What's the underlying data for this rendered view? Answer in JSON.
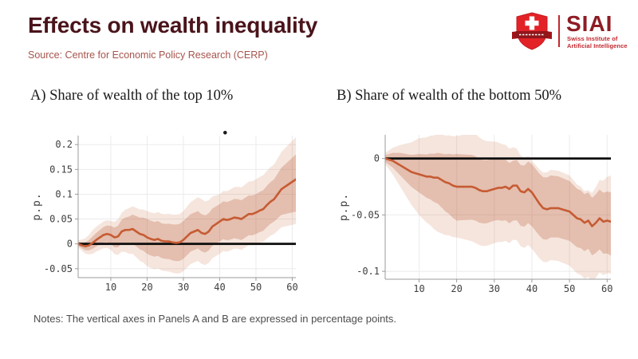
{
  "header": {
    "title": "Effects on wealth inequality",
    "source": "Source: Centre for Economic Policy Research (CERP)",
    "logo": {
      "acronym": "SIAI",
      "line1": "Swiss Institute of",
      "line2": "Artificial Intelligence",
      "shield_red": "#e32227",
      "banner_dark": "#8f161b",
      "text_dark_red": "#8e1c24",
      "text_red": "#c1272d"
    }
  },
  "notes": "Notes: The vertical axes in Panels A and B are expressed in percentage points.",
  "colors": {
    "title": "#4a141b",
    "source": "#a6544d",
    "line": "#c65b33",
    "outer_band": "rgba(205,125,85,0.20)",
    "inner_band": "rgba(190,100,65,0.30)",
    "zero_line": "#0d0d0d",
    "grid": "#ebebeb",
    "spine": "#9b9b9b",
    "tick_text": "#3f3f3f"
  },
  "chart_data": [
    {
      "type": "line",
      "panel": "A",
      "title": "A) Share of wealth of the top 10%",
      "ylabel": "p.p.",
      "xlim": [
        1,
        61
      ],
      "ylim": [
        -0.068,
        0.218
      ],
      "yticks": [
        "0.2",
        "0.15",
        "0.1",
        "0.05",
        "0",
        "-0.05"
      ],
      "ytick_values": [
        0.2,
        0.15,
        0.1,
        0.05,
        0,
        -0.05
      ],
      "xticks": [
        "10",
        "20",
        "30",
        "40",
        "50",
        "60"
      ],
      "xtick_values": [
        10,
        20,
        30,
        40,
        50,
        60
      ],
      "grid": true,
      "zero_line": true,
      "x": {
        "start": 1,
        "step": 1,
        "count": 61
      },
      "line": [
        0.0,
        -0.003,
        -0.005,
        -0.003,
        0.002,
        0.008,
        0.013,
        0.018,
        0.02,
        0.018,
        0.013,
        0.015,
        0.025,
        0.028,
        0.028,
        0.03,
        0.025,
        0.02,
        0.018,
        0.013,
        0.01,
        0.008,
        0.01,
        0.006,
        0.005,
        0.005,
        0.003,
        0.002,
        0.003,
        0.008,
        0.015,
        0.022,
        0.025,
        0.028,
        0.022,
        0.02,
        0.025,
        0.035,
        0.04,
        0.045,
        0.05,
        0.048,
        0.05,
        0.053,
        0.052,
        0.05,
        0.055,
        0.06,
        0.06,
        0.063,
        0.067,
        0.07,
        0.078,
        0.085,
        0.09,
        0.1,
        0.11,
        0.115,
        0.12,
        0.125,
        0.13
      ],
      "inner_band": {
        "anchor_x": [
          1,
          5,
          10,
          15,
          20,
          25,
          30,
          35,
          40,
          45,
          50,
          55,
          61
        ],
        "lo": [
          -0.004,
          -0.01,
          0.0,
          0.0,
          -0.02,
          -0.03,
          -0.03,
          -0.015,
          0.005,
          0.01,
          0.02,
          0.045,
          0.065
        ],
        "hi": [
          0.004,
          0.015,
          0.036,
          0.055,
          0.05,
          0.04,
          0.046,
          0.06,
          0.08,
          0.09,
          0.1,
          0.13,
          0.18
        ]
      },
      "outer_band": {
        "anchor_x": [
          1,
          5,
          10,
          15,
          20,
          25,
          30,
          35,
          40,
          45,
          50,
          55,
          61
        ],
        "lo": [
          -0.007,
          -0.02,
          -0.012,
          -0.02,
          -0.045,
          -0.055,
          -0.055,
          -0.04,
          -0.02,
          -0.01,
          0.0,
          0.02,
          0.04
        ],
        "hi": [
          0.007,
          0.028,
          0.046,
          0.072,
          0.066,
          0.06,
          0.066,
          0.09,
          0.1,
          0.115,
          0.13,
          0.16,
          0.215
        ]
      },
      "annotation_dot": {
        "x": 41.5,
        "y": 0.224,
        "meaning": "significance marker"
      }
    },
    {
      "type": "line",
      "panel": "B",
      "title": "B) Share of wealth of the bottom 50%",
      "ylabel": "p.p.",
      "xlim": [
        1,
        61
      ],
      "ylim": [
        -0.107,
        0.021
      ],
      "yticks": [
        "0",
        "-0.05",
        "-0.1"
      ],
      "ytick_values": [
        0,
        -0.05,
        -0.1
      ],
      "xticks": [
        "10",
        "20",
        "30",
        "40",
        "50",
        "60"
      ],
      "xtick_values": [
        10,
        20,
        30,
        40,
        50,
        60
      ],
      "grid": true,
      "zero_line": true,
      "x": {
        "start": 1,
        "step": 1,
        "count": 61
      },
      "line": [
        0.0,
        -0.001,
        -0.002,
        -0.004,
        -0.006,
        -0.008,
        -0.01,
        -0.012,
        -0.013,
        -0.014,
        -0.015,
        -0.016,
        -0.016,
        -0.017,
        -0.017,
        -0.019,
        -0.021,
        -0.022,
        -0.024,
        -0.025,
        -0.025,
        -0.025,
        -0.025,
        -0.025,
        -0.026,
        -0.028,
        -0.029,
        -0.029,
        -0.028,
        -0.027,
        -0.026,
        -0.026,
        -0.025,
        -0.027,
        -0.024,
        -0.024,
        -0.029,
        -0.03,
        -0.027,
        -0.03,
        -0.035,
        -0.04,
        -0.044,
        -0.045,
        -0.044,
        -0.044,
        -0.044,
        -0.045,
        -0.046,
        -0.047,
        -0.05,
        -0.053,
        -0.054,
        -0.057,
        -0.055,
        -0.06,
        -0.057,
        -0.053,
        -0.056,
        -0.055,
        -0.056
      ],
      "inner_band": {
        "anchor_x": [
          1,
          5,
          10,
          15,
          20,
          25,
          30,
          35,
          40,
          45,
          50,
          55,
          61
        ],
        "lo": [
          -0.003,
          -0.015,
          -0.03,
          -0.04,
          -0.055,
          -0.055,
          -0.055,
          -0.055,
          -0.06,
          -0.07,
          -0.073,
          -0.08,
          -0.086
        ],
        "hi": [
          0.003,
          0.005,
          0.004,
          0.005,
          0.004,
          0.002,
          0.0,
          -0.002,
          -0.005,
          -0.015,
          -0.02,
          -0.03,
          -0.03
        ]
      },
      "outer_band": {
        "anchor_x": [
          1,
          5,
          10,
          15,
          20,
          25,
          30,
          35,
          40,
          45,
          50,
          55,
          61
        ],
        "lo": [
          -0.005,
          -0.025,
          -0.05,
          -0.065,
          -0.07,
          -0.075,
          -0.075,
          -0.072,
          -0.08,
          -0.09,
          -0.095,
          -0.105,
          -0.102
        ],
        "hi": [
          0.005,
          0.012,
          0.018,
          0.022,
          0.02,
          0.022,
          0.015,
          0.01,
          -0.002,
          -0.01,
          -0.015,
          -0.028,
          -0.015
        ]
      }
    }
  ]
}
